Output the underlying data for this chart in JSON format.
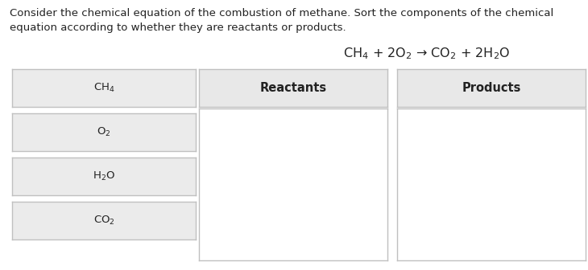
{
  "background_color": "#ffffff",
  "text_color": "#222222",
  "header_text_line1": "Consider the chemical equation of the combustion of methane. Sort the components of the chemical",
  "header_text_line2": "equation according to whether they are reactants or products.",
  "equation": "CH$_4$ + 2O$_2$ → CO$_2$ + 2H$_2$O",
  "items": [
    "CH$_4$",
    "O$_2$",
    "H$_2$O",
    "CO$_2$"
  ],
  "item_box_facecolor": "#ebebeb",
  "item_box_edgecolor": "#c0c0c0",
  "col_headers": [
    "Reactants",
    "Products"
  ],
  "col_header_facecolor": "#e8e8e8",
  "col_body_facecolor": "#ffffff",
  "col_edgecolor": "#c0c0c0",
  "header_fontsize": 9.5,
  "equation_fontsize": 11.5,
  "item_fontsize": 9.5,
  "col_header_fontsize": 10.5,
  "fig_width": 7.3,
  "fig_height": 3.36,
  "dpi": 100
}
